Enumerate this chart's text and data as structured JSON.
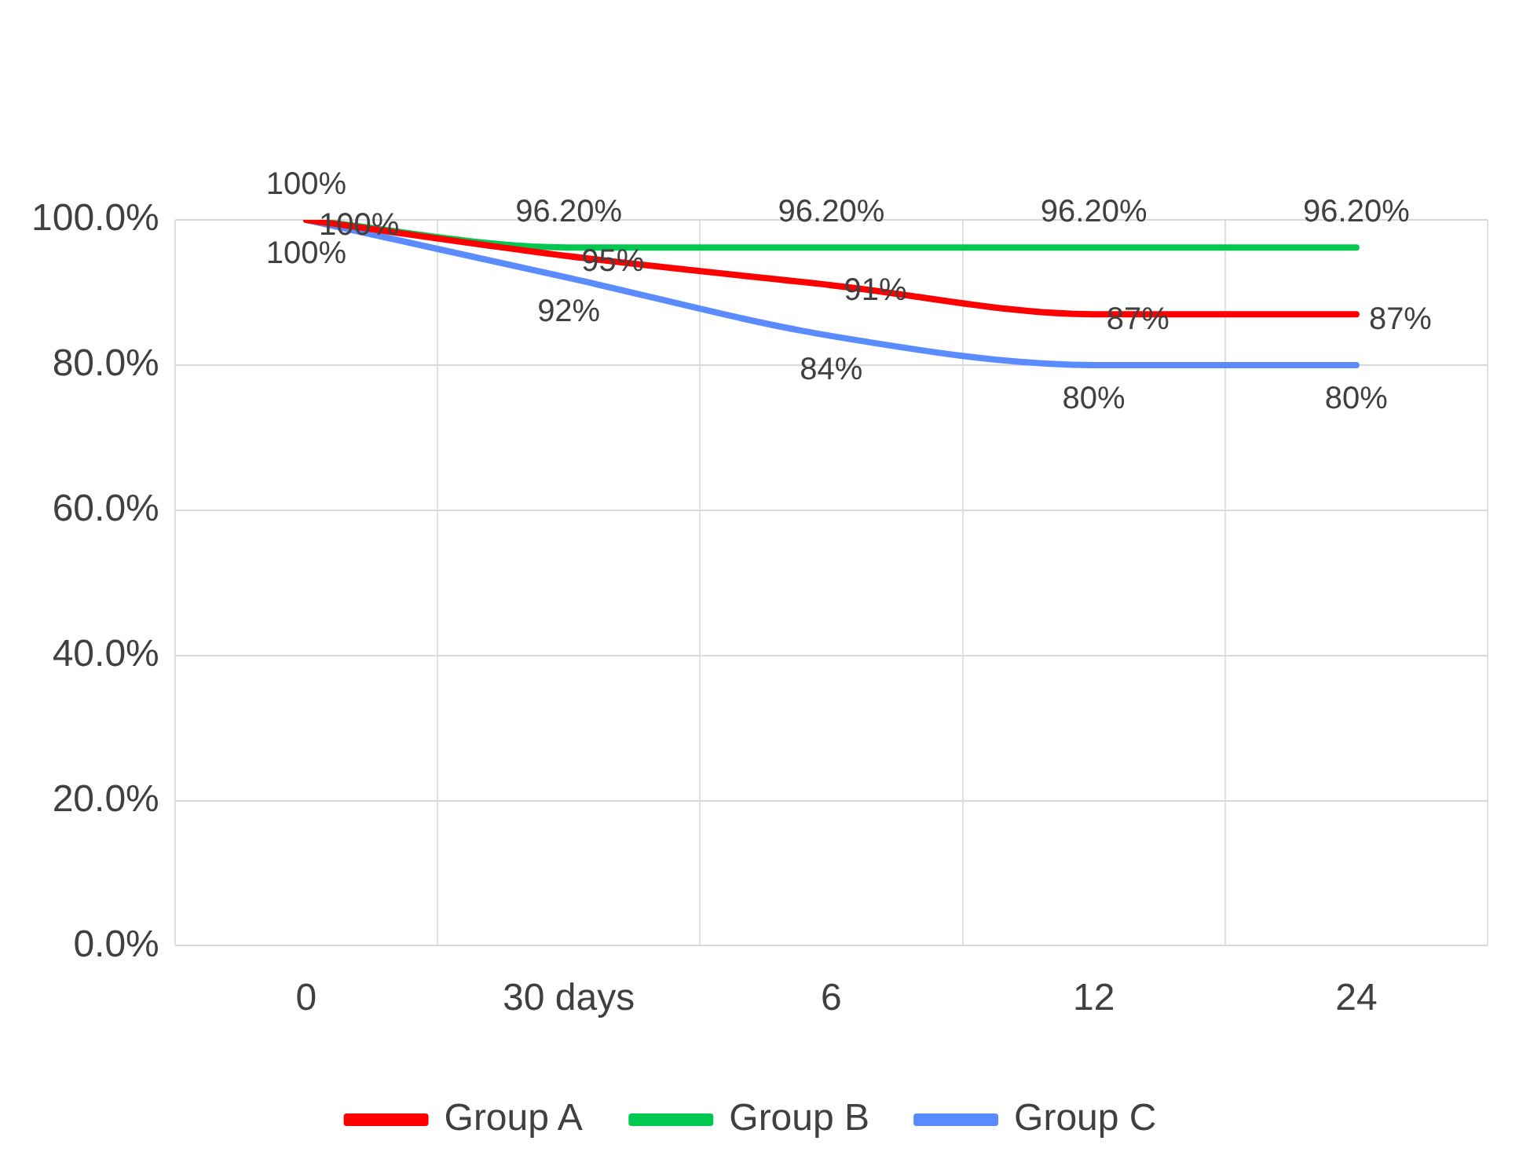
{
  "chart_data": {
    "type": "line",
    "categories": [
      "0",
      "30 days",
      "6",
      "12",
      "24"
    ],
    "series": [
      {
        "name": "Group A",
        "color": "#ff0000",
        "values": [
          100,
          95,
          91,
          87,
          87
        ],
        "value_labels": [
          "100%",
          "95%",
          "91%",
          "87%",
          "87%"
        ]
      },
      {
        "name": "Group B",
        "color": "#00c850",
        "values": [
          100,
          96.2,
          96.2,
          96.2,
          96.2
        ],
        "value_labels": [
          "100%",
          "96.20%",
          "96.20%",
          "96.20%",
          "96.20%"
        ]
      },
      {
        "name": "Group C",
        "color": "#5b8cff",
        "values": [
          100,
          92,
          84,
          80,
          80
        ],
        "value_labels": [
          "100%",
          "92%",
          "84%",
          "80%",
          "80%"
        ]
      }
    ],
    "ylim": [
      0,
      100
    ],
    "yticks": [
      {
        "value": 0,
        "label": "0.0%"
      },
      {
        "value": 20,
        "label": "20.0%"
      },
      {
        "value": 40,
        "label": "40.0%"
      },
      {
        "value": 60,
        "label": "60.0%"
      },
      {
        "value": 80,
        "label": "80.0%"
      },
      {
        "value": 100,
        "label": "100.0%"
      }
    ],
    "grid": true,
    "legend": "bottom",
    "marker": "none",
    "line_style": "solid"
  }
}
